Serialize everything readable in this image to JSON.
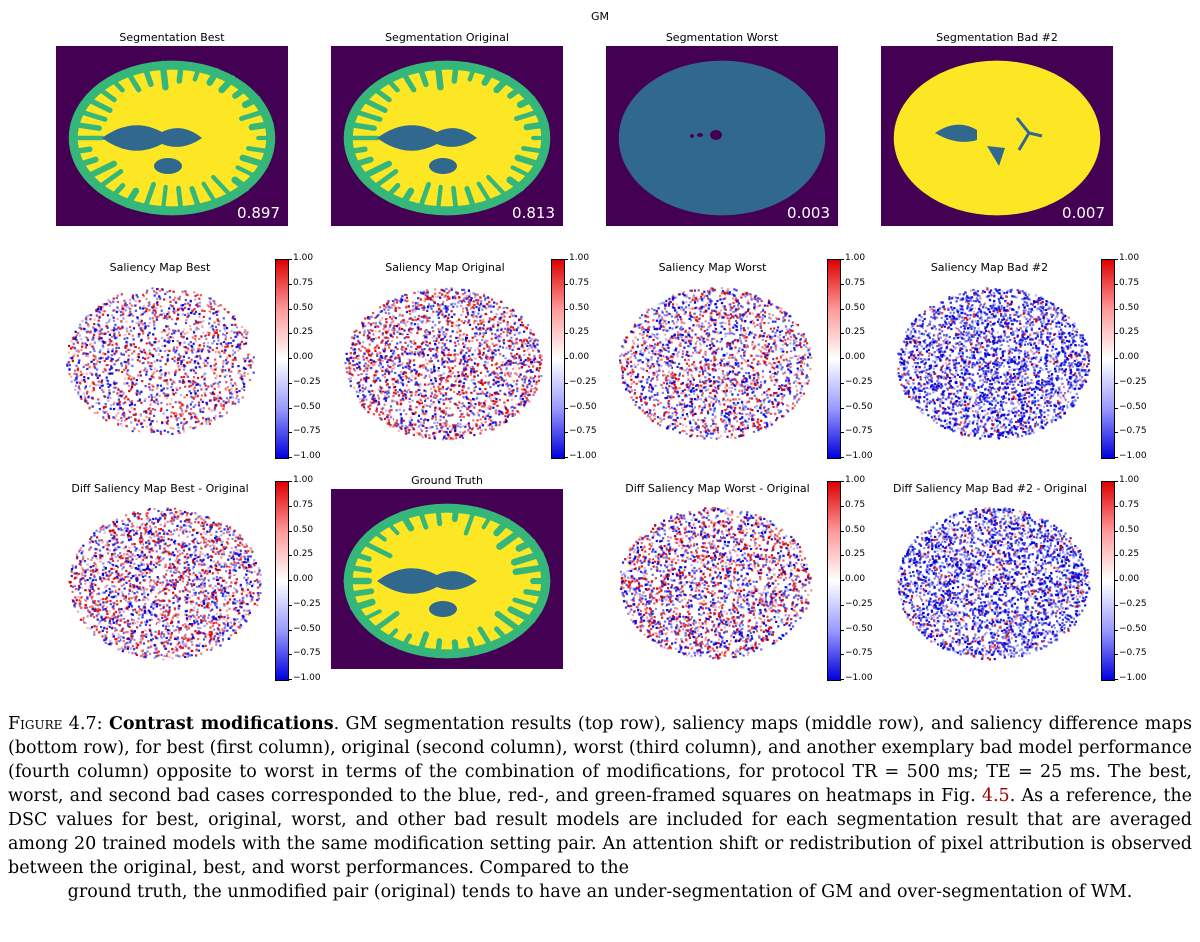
{
  "figure": {
    "main_title": "GM",
    "segmentation": [
      {
        "title": "Segmentation Best",
        "dsc": "0.897",
        "style": "normal"
      },
      {
        "title": "Segmentation Original",
        "dsc": "0.813",
        "style": "normal"
      },
      {
        "title": "Segmentation Worst",
        "dsc": "0.003",
        "style": "worst"
      },
      {
        "title": "Segmentation Bad #2",
        "dsc": "0.007",
        "style": "over"
      }
    ],
    "saliency": [
      {
        "title": "Saliency Map Best"
      },
      {
        "title": "Saliency Map Original"
      },
      {
        "title": "Saliency Map Worst"
      },
      {
        "title": "Saliency Map Bad #2"
      }
    ],
    "diff": [
      {
        "title": "Diff Saliency Map Best - Original"
      },
      {
        "title": "Ground Truth"
      },
      {
        "title": "Diff Saliency Map Worst - Original"
      },
      {
        "title": "Diff Saliency Map Bad #2 - Original"
      }
    ],
    "colorbar_ticks": [
      "1.00",
      "0.75",
      "0.50",
      "0.25",
      "0.00",
      "−0.25",
      "−0.50",
      "−0.75",
      "−1.00"
    ],
    "colors": {
      "background": "#440154",
      "csf": "#31688e",
      "gm": "#35b779",
      "wm": "#fde725",
      "positive": "#dd0000",
      "negative": "#0000dd"
    }
  },
  "caption": {
    "label": "Figure 4.7:",
    "bold": "Contrast modifications",
    "text1": ". GM segmentation results (top row), saliency maps (middle row), and saliency difference maps (bottom row), for best (first column), original (second column), worst (third column), and another exemplary bad model performance (fourth column) opposite to worst in terms of the combination of modifications, for protocol TR = 500 ms; TE = 25 ms. The best, worst, and second bad cases corresponded to the blue, red-, and green-framed squares on heatmaps in Fig. ",
    "ref": "4.5",
    "text2": ". As a reference, the DSC values for best, original, worst, and other bad result models are included for each segmentation result that are averaged among 20 trained models with the same modification setting pair. An attention shift or redistribution of pixel attribution is observed between the original, best, and worst performances. Compared to the",
    "last_line": "ground truth, the unmodified pair (original) tends to have an under-segmentation of GM and over-segmentation of WM."
  }
}
